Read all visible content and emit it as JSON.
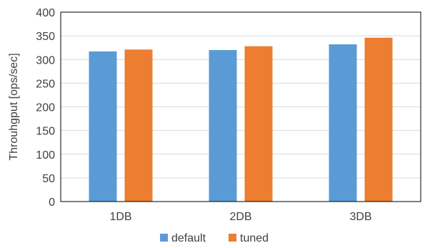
{
  "chart_data": {
    "type": "bar",
    "title": "",
    "xlabel": "",
    "ylabel": "Throuhgput [ops/sec]",
    "categories": [
      "1DB",
      "2DB",
      "3DB"
    ],
    "series": [
      {
        "name": "default",
        "values": [
          317,
          320,
          332
        ],
        "color": "#5B9BD5"
      },
      {
        "name": "tuned",
        "values": [
          321,
          328,
          346
        ],
        "color": "#ED7D31"
      }
    ],
    "ylim": [
      0,
      400
    ],
    "yticks": [
      0,
      50,
      100,
      150,
      200,
      250,
      300,
      350,
      400
    ],
    "grid": "horizontal",
    "legend": "bottom-center",
    "plot_border_color": "#000000",
    "grid_color": "#D9D9D9"
  }
}
